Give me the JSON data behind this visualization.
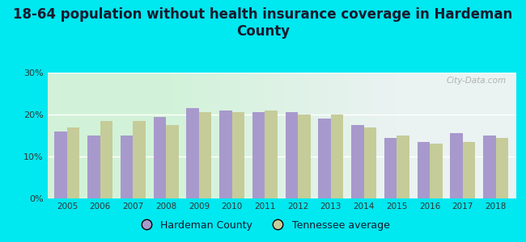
{
  "title": "18-64 population without health insurance coverage in Hardeman\nCounty",
  "years": [
    2005,
    2006,
    2007,
    2008,
    2009,
    2010,
    2011,
    2012,
    2013,
    2014,
    2015,
    2016,
    2017,
    2018
  ],
  "hardeman": [
    16.0,
    15.0,
    15.0,
    19.5,
    21.5,
    21.0,
    20.5,
    20.5,
    19.0,
    17.5,
    14.5,
    13.5,
    15.5,
    15.0
  ],
  "tennessee": [
    17.0,
    18.5,
    18.5,
    17.5,
    20.5,
    20.5,
    21.0,
    20.0,
    20.0,
    17.0,
    15.0,
    13.0,
    13.5,
    14.5
  ],
  "hardeman_color": "#a899cc",
  "tennessee_color": "#c5cc99",
  "background_outer": "#00e8f0",
  "ylim": [
    0,
    30
  ],
  "yticks": [
    0,
    10,
    20,
    30
  ],
  "ytick_labels": [
    "0%",
    "10%",
    "20%",
    "30%"
  ],
  "legend_hardeman": "Hardeman County",
  "legend_tennessee": "Tennessee average",
  "title_fontsize": 12,
  "bar_width": 0.38
}
